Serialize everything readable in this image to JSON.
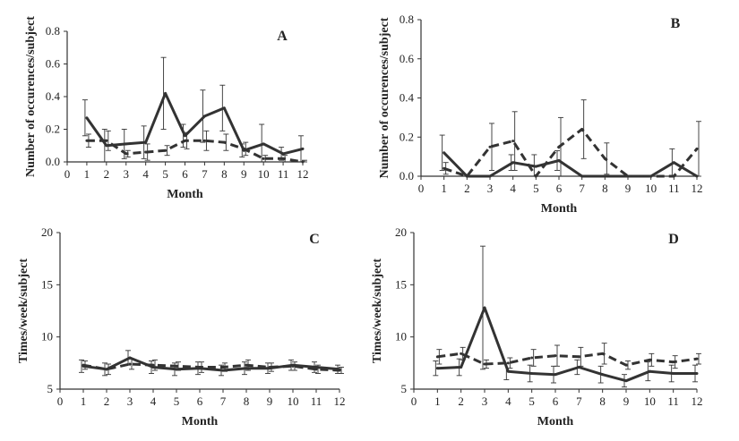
{
  "colors": {
    "ink": "#333333",
    "background": "#ffffff"
  },
  "chart_data": [
    {
      "panel": "A",
      "type": "line",
      "xlabel": "Month",
      "ylabel": "Number of occurences/subject",
      "xlim": [
        0,
        12
      ],
      "ylim": [
        0,
        0.8
      ],
      "xticks": [
        0,
        1,
        2,
        3,
        4,
        5,
        6,
        7,
        8,
        9,
        10,
        11,
        12
      ],
      "yticks": [
        "0.0",
        "0.2",
        "0.4",
        "0.6",
        "0.8"
      ],
      "grid": false,
      "series": [
        {
          "style": "solid",
          "x": [
            1,
            2,
            3,
            4,
            5,
            6,
            7,
            8,
            9,
            10,
            11,
            12
          ],
          "y": [
            0.27,
            0.1,
            0.11,
            0.12,
            0.42,
            0.16,
            0.28,
            0.33,
            0.07,
            0.11,
            0.05,
            0.08
          ],
          "error": [
            0.11,
            0.1,
            0.09,
            0.1,
            0.22,
            0.07,
            0.16,
            0.14,
            0.04,
            0.12,
            0.04,
            0.08
          ]
        },
        {
          "style": "dashed",
          "x": [
            1,
            2,
            3,
            4,
            5,
            6,
            7,
            8,
            9,
            10,
            11,
            12
          ],
          "y": [
            0.13,
            0.13,
            0.05,
            0.06,
            0.07,
            0.13,
            0.13,
            0.12,
            0.08,
            0.02,
            0.02,
            0.0
          ],
          "error": [
            0.04,
            0.06,
            0.02,
            0.05,
            0.03,
            0.05,
            0.06,
            0.05,
            0.04,
            0.02,
            0.02,
            0.01
          ]
        }
      ]
    },
    {
      "panel": "B",
      "type": "line",
      "xlabel": "Month",
      "ylabel": "Number of occurences/subject",
      "xlim": [
        0,
        12
      ],
      "ylim": [
        0,
        0.8
      ],
      "xticks": [
        0,
        1,
        2,
        3,
        4,
        5,
        6,
        7,
        8,
        9,
        10,
        11,
        12
      ],
      "yticks": [
        "0.0",
        "0.2",
        "0.4",
        "0.6",
        "0.8"
      ],
      "grid": false,
      "series": [
        {
          "style": "solid",
          "x": [
            1,
            2,
            3,
            4,
            5,
            6,
            7,
            8,
            9,
            10,
            11,
            12
          ],
          "y": [
            0.12,
            0.0,
            0.0,
            0.07,
            0.05,
            0.08,
            0.0,
            0.0,
            0.0,
            0.0,
            0.07,
            0.0
          ],
          "error": [
            0.09,
            0.0,
            0.0,
            0.04,
            0.06,
            0.05,
            0.0,
            0.0,
            0.0,
            0.0,
            0.07,
            0.0
          ]
        },
        {
          "style": "dashed",
          "x": [
            1,
            2,
            3,
            4,
            5,
            6,
            7,
            8,
            9,
            10,
            11,
            12
          ],
          "y": [
            0.04,
            0.0,
            0.15,
            0.18,
            0.0,
            0.15,
            0.24,
            0.09,
            0.0,
            0.0,
            0.0,
            0.14
          ],
          "error": [
            0.03,
            0.0,
            0.12,
            0.15,
            0.0,
            0.15,
            0.15,
            0.08,
            0.0,
            0.0,
            0.0,
            0.14
          ]
        }
      ]
    },
    {
      "panel": "C",
      "type": "line",
      "xlabel": "Month",
      "ylabel": "Times/week/subject",
      "xlim": [
        0,
        12
      ],
      "ylim": [
        5,
        20
      ],
      "xticks": [
        0,
        1,
        2,
        3,
        4,
        5,
        6,
        7,
        8,
        9,
        10,
        11,
        12
      ],
      "yticks": [
        "5",
        "10",
        "15",
        "20"
      ],
      "grid": false,
      "series": [
        {
          "style": "solid",
          "x": [
            1,
            2,
            3,
            4,
            5,
            6,
            7,
            8,
            9,
            10,
            11,
            12
          ],
          "y": [
            7.2,
            6.9,
            8.0,
            7.1,
            6.9,
            7.0,
            6.8,
            7.0,
            7.0,
            7.3,
            7.1,
            6.9
          ],
          "error": [
            0.6,
            0.6,
            0.7,
            0.6,
            0.6,
            0.6,
            0.5,
            0.6,
            0.5,
            0.5,
            0.5,
            0.4
          ]
        },
        {
          "style": "dashed",
          "x": [
            1,
            2,
            3,
            4,
            5,
            6,
            7,
            8,
            9,
            10,
            11,
            12
          ],
          "y": [
            7.3,
            6.9,
            7.4,
            7.3,
            7.2,
            7.1,
            7.1,
            7.3,
            7.1,
            7.2,
            6.9,
            6.8
          ],
          "error": [
            0.4,
            0.5,
            0.5,
            0.5,
            0.4,
            0.5,
            0.4,
            0.5,
            0.4,
            0.4,
            0.4,
            0.3
          ]
        }
      ]
    },
    {
      "panel": "D",
      "type": "line",
      "xlabel": "Month",
      "ylabel": "Times/week/subject",
      "xlim": [
        0,
        12
      ],
      "ylim": [
        5,
        20
      ],
      "xticks": [
        0,
        1,
        2,
        3,
        4,
        5,
        6,
        7,
        8,
        9,
        10,
        11,
        12
      ],
      "yticks": [
        "5",
        "10",
        "15",
        "20"
      ],
      "grid": false,
      "series": [
        {
          "style": "solid",
          "x": [
            1,
            2,
            3,
            4,
            5,
            6,
            7,
            8,
            9,
            10,
            11,
            12
          ],
          "y": [
            7.0,
            7.1,
            12.8,
            6.7,
            6.5,
            6.4,
            7.1,
            6.4,
            5.8,
            6.7,
            6.5,
            6.5
          ],
          "error": [
            0.7,
            0.8,
            5.9,
            0.8,
            0.8,
            0.8,
            0.7,
            0.8,
            0.6,
            0.9,
            0.8,
            0.8
          ]
        },
        {
          "style": "dashed",
          "x": [
            1,
            2,
            3,
            4,
            5,
            6,
            7,
            8,
            9,
            10,
            11,
            12
          ],
          "y": [
            8.1,
            8.4,
            7.4,
            7.5,
            8.0,
            8.2,
            8.1,
            8.4,
            7.3,
            7.8,
            7.6,
            7.9
          ],
          "error": [
            0.7,
            0.6,
            0.4,
            0.5,
            0.8,
            1.0,
            0.9,
            1.0,
            0.4,
            0.6,
            0.6,
            0.5
          ]
        }
      ]
    }
  ]
}
